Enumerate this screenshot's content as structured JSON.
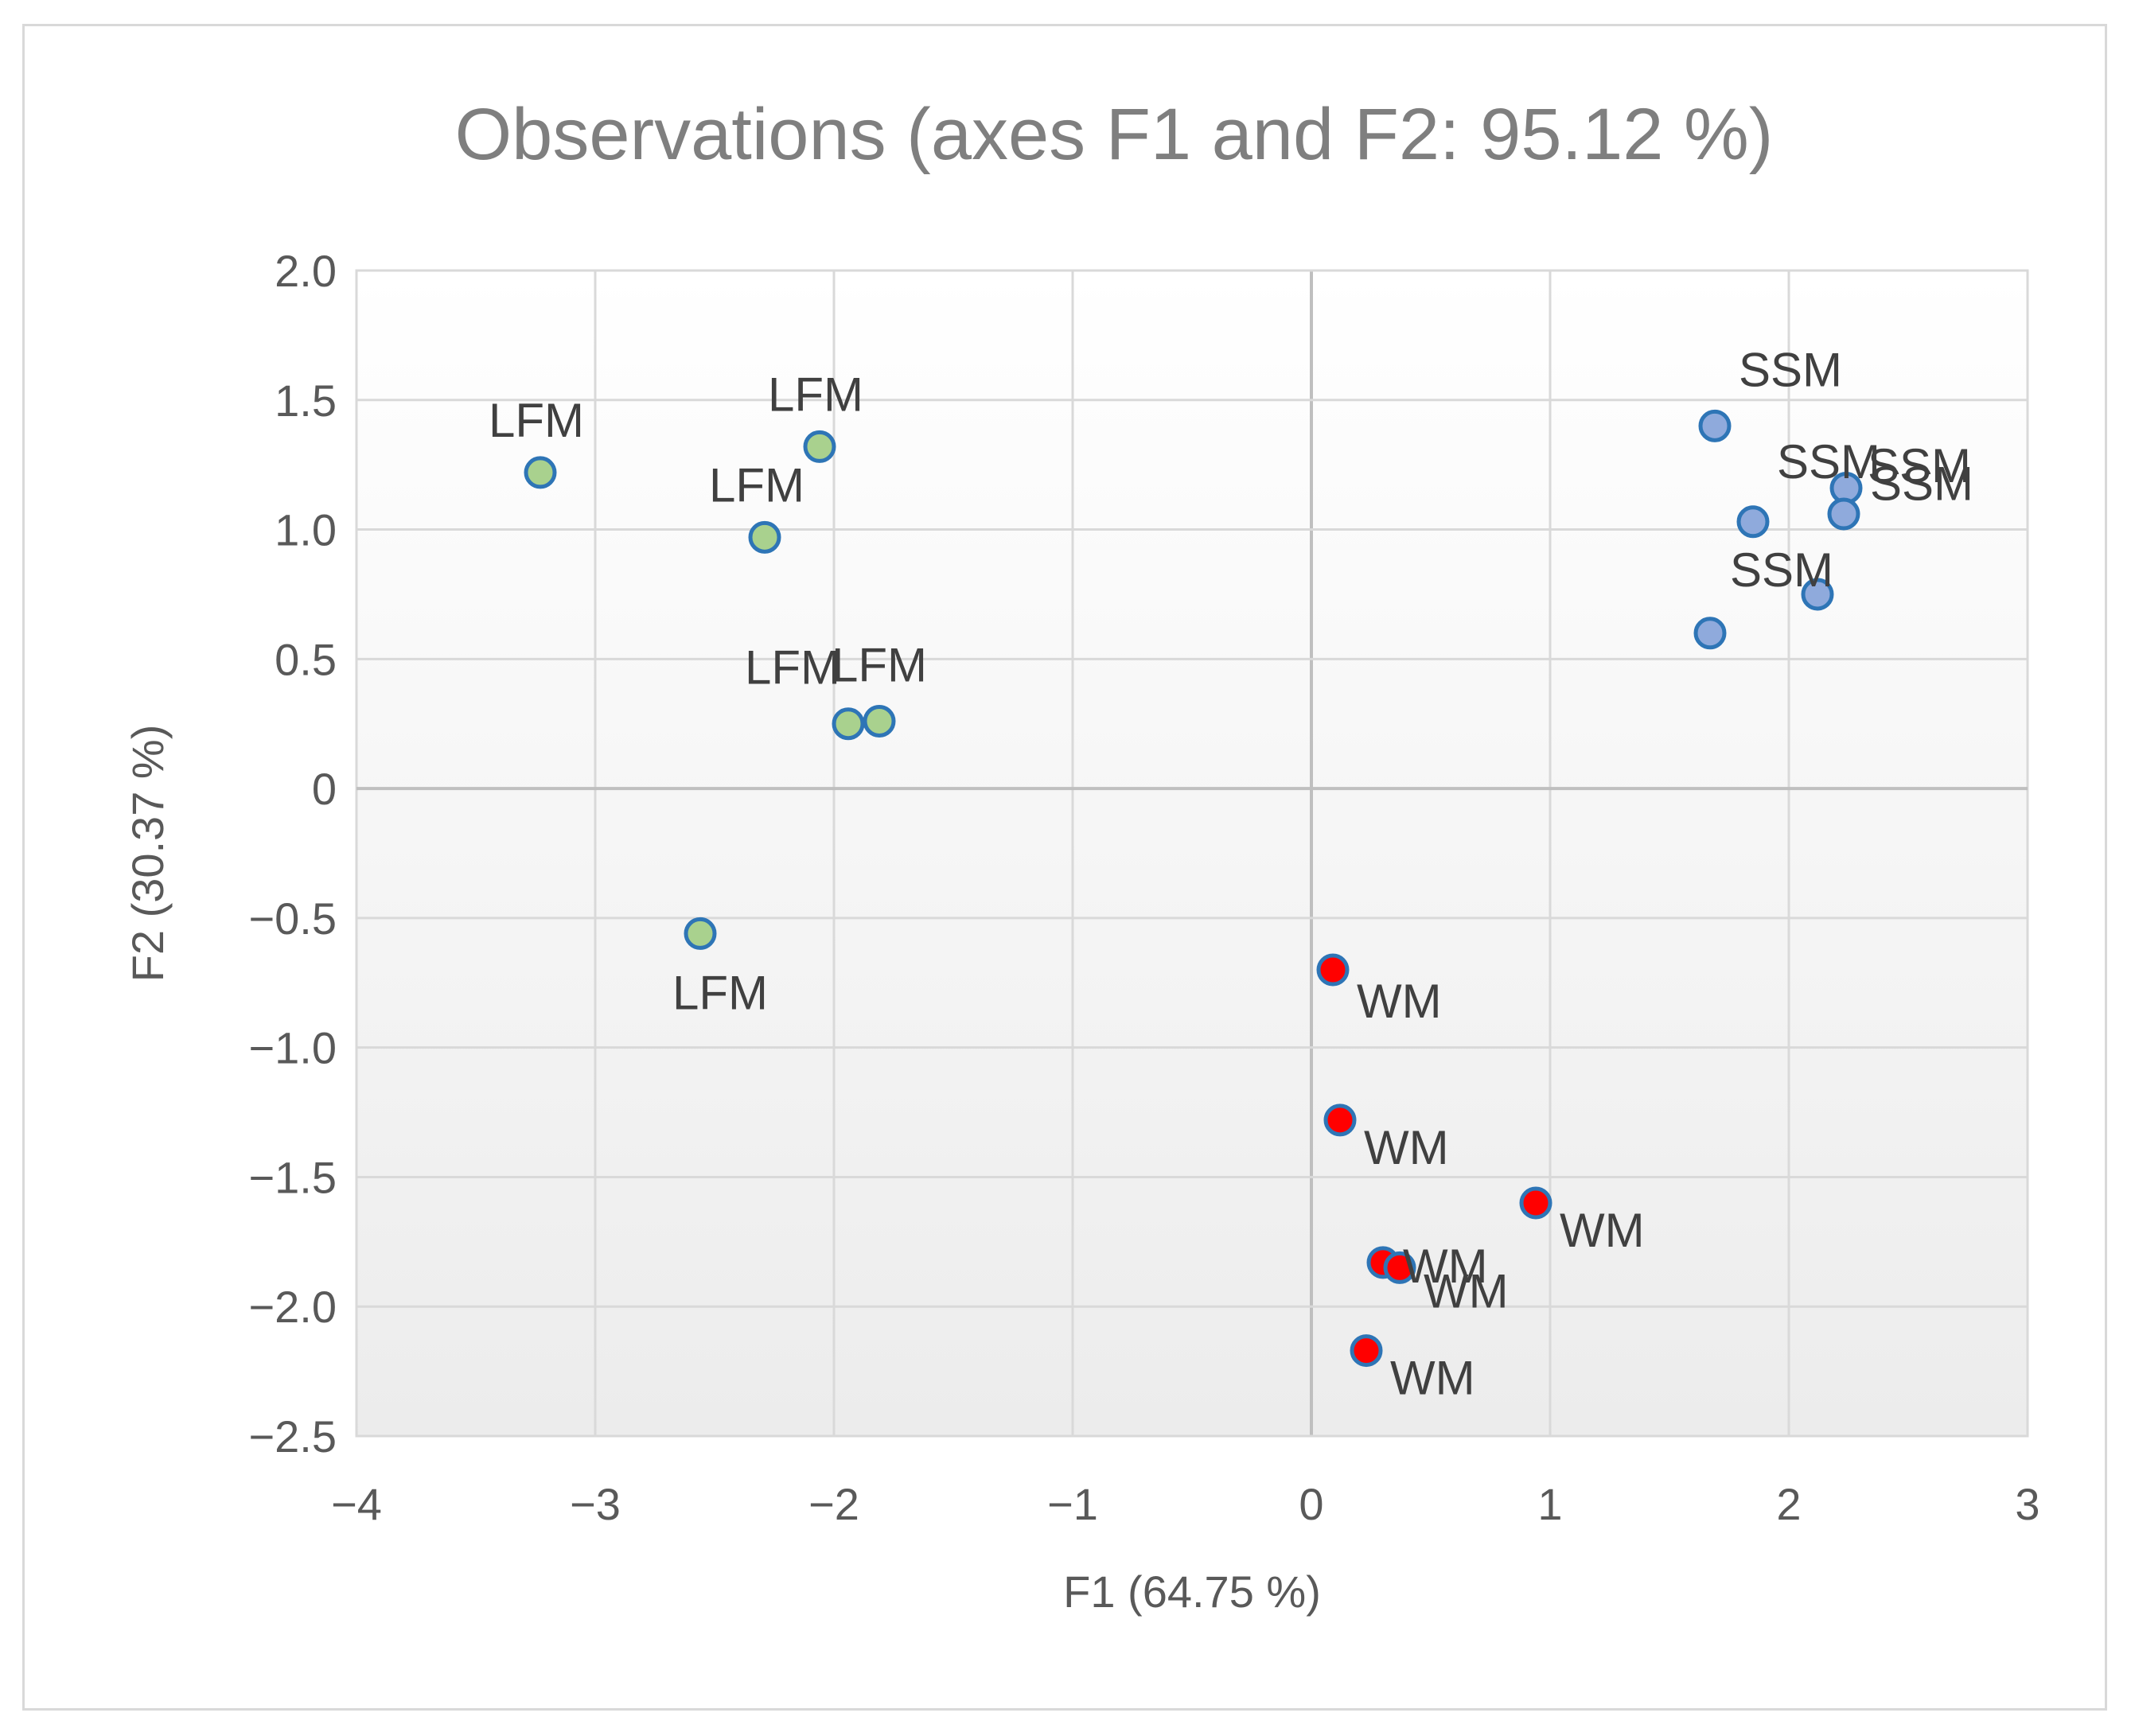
{
  "chart_data": {
    "type": "scatter",
    "title": "Observations (axes F1 and F2: 95.12 %)",
    "xlabel": "F1 (64.75 %)",
    "ylabel": "F2 (30.37 %)",
    "xlim": [
      -4,
      3
    ],
    "ylim": [
      -2.5,
      2.0
    ],
    "x_ticks": [
      "−4",
      "−3",
      "−2",
      "−1",
      "0",
      "1",
      "2",
      "3"
    ],
    "y_ticks": [
      "2.0",
      "1.5",
      "1.0",
      "0.5",
      "0",
      "−0.5",
      "−1.0",
      "−1.5",
      "−2.0",
      "−2.5"
    ],
    "grid": true,
    "series": [
      {
        "name": "LFM",
        "color": "#a9d18e",
        "edge": "#2e75b6",
        "points": [
          {
            "x": -3.23,
            "y": 1.22,
            "label": "LFM"
          },
          {
            "x": -2.06,
            "y": 1.32,
            "label": "LFM"
          },
          {
            "x": -2.29,
            "y": 0.97,
            "label": "LFM"
          },
          {
            "x": -1.94,
            "y": 0.25,
            "label": "LFM"
          },
          {
            "x": -1.81,
            "y": 0.26,
            "label": "LFM"
          },
          {
            "x": -2.56,
            "y": -0.56,
            "label": "LFM"
          }
        ]
      },
      {
        "name": "SSM",
        "color": "#8faadc",
        "edge": "#2e75b6",
        "points": [
          {
            "x": 1.69,
            "y": 1.4,
            "label": "SSM"
          },
          {
            "x": 2.24,
            "y": 1.16,
            "label": "SSM"
          },
          {
            "x": 2.23,
            "y": 1.06,
            "label": "SSM"
          },
          {
            "x": 1.85,
            "y": 1.03,
            "label": "SSM"
          },
          {
            "x": 2.12,
            "y": 0.75,
            "label": "SSM"
          },
          {
            "x": 1.67,
            "y": 0.6,
            "label": "SSM"
          }
        ]
      },
      {
        "name": "WM",
        "color": "#ff0000",
        "edge": "#2e75b6",
        "points": [
          {
            "x": 0.09,
            "y": -0.7,
            "label": "WM"
          },
          {
            "x": 0.12,
            "y": -1.28,
            "label": "WM"
          },
          {
            "x": 0.94,
            "y": -1.6,
            "label": "WM"
          },
          {
            "x": 0.3,
            "y": -1.83,
            "label": "WM"
          },
          {
            "x": 0.37,
            "y": -1.85,
            "label": "WM"
          },
          {
            "x": 0.23,
            "y": -2.17,
            "label": "WM"
          }
        ]
      }
    ]
  }
}
